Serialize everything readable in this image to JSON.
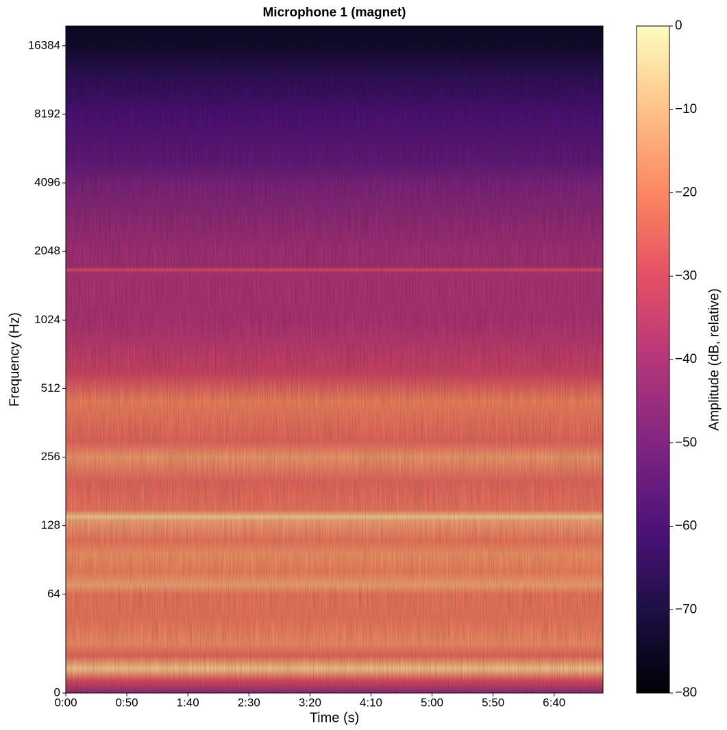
{
  "chart_data": {
    "type": "spectrogram",
    "title": "Microphone 1 (magnet)",
    "x_label": "Time (s)",
    "y_label": "Frequency (Hz)",
    "colorbar_label": "Amplitude (dB, relative)",
    "colormap": "magma",
    "y_scale": "symlog",
    "xlim": [
      0,
      440
    ],
    "xticks": [
      {
        "value": 0,
        "label": "0:00"
      },
      {
        "value": 50,
        "label": "0:50"
      },
      {
        "value": 100,
        "label": "1:40"
      },
      {
        "value": 150,
        "label": "2:30"
      },
      {
        "value": 200,
        "label": "3:20"
      },
      {
        "value": 250,
        "label": "4:10"
      },
      {
        "value": 300,
        "label": "5:00"
      },
      {
        "value": 350,
        "label": "5:50"
      },
      {
        "value": 400,
        "label": "6:40"
      }
    ],
    "ylim": [
      0,
      20000
    ],
    "yticks": [
      0,
      64,
      128,
      256,
      512,
      1024,
      2048,
      4096,
      8192,
      16384
    ],
    "zlim": [
      -80,
      0
    ],
    "zticks": [
      {
        "value": -80,
        "label": "−80"
      },
      {
        "value": -70,
        "label": "−70"
      },
      {
        "value": -60,
        "label": "−60"
      },
      {
        "value": -50,
        "label": "−50"
      },
      {
        "value": -40,
        "label": "−40"
      },
      {
        "value": -30,
        "label": "−30"
      },
      {
        "value": -20,
        "label": "−20"
      },
      {
        "value": -10,
        "label": "−10"
      },
      0
    ],
    "profile": {
      "frequencies": [
        0,
        8,
        14,
        16,
        19,
        24,
        32,
        48,
        64,
        70,
        80,
        96,
        110,
        135,
        140,
        150,
        200,
        256,
        300,
        450,
        600,
        1024,
        1650,
        1700,
        1750,
        2048,
        4096,
        5000,
        8192,
        12000,
        16384,
        20000
      ],
      "values": [
        -45,
        -30,
        -12,
        -8,
        -14,
        -25,
        -18,
        -22,
        -22,
        -14,
        -20,
        -17,
        -22,
        -14,
        -7,
        -22,
        -25,
        -16,
        -25,
        -20,
        -33,
        -40,
        -40,
        -30,
        -42,
        -42,
        -50,
        -55,
        -60,
        -66,
        -73,
        -75
      ]
    }
  }
}
